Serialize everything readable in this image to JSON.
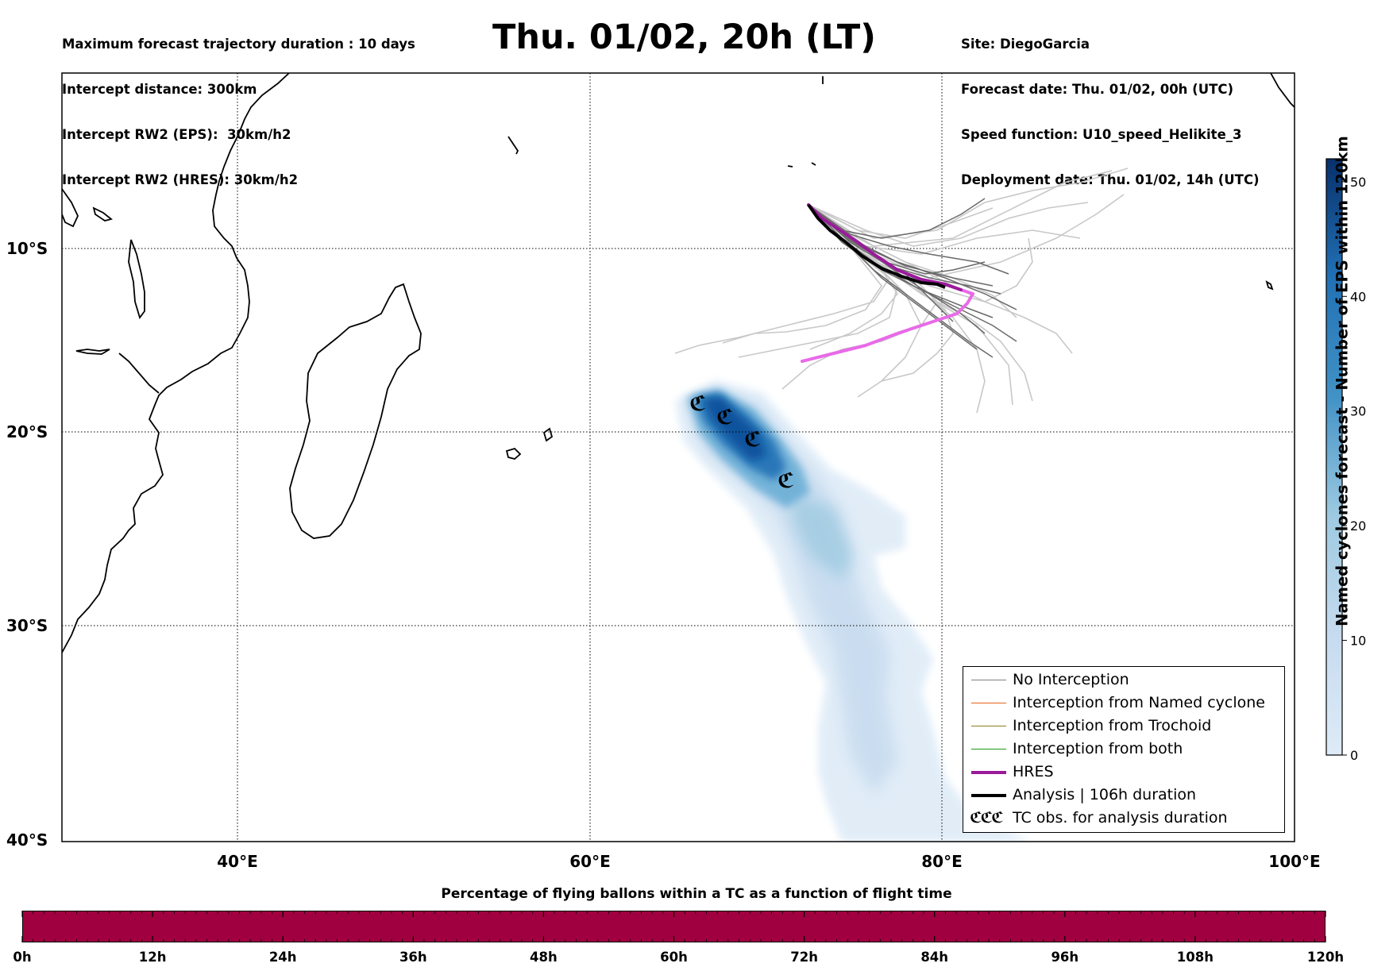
{
  "header_left": [
    "Maximum forecast trajectory duration : 10 days",
    "Intercept distance: 300km",
    "Intercept RW2 (EPS):  30km/h2",
    "Intercept RW2 (HRES): 30km/h2"
  ],
  "header_right": [
    "Site: DiegoGarcia",
    "Forecast date: Thu. 01/02, 00h (UTC)",
    "Speed function: U10_speed_Helikite_3",
    "Deployment date: Thu. 01/02, 14h (UTC)"
  ],
  "title": "Thu. 01/02, 20h (LT)",
  "map": {
    "lon_labels": [
      "40°E",
      "60°E",
      "80°E",
      "100°E"
    ],
    "lat_labels": [
      "10°S",
      "20°S",
      "30°S",
      "40°S"
    ],
    "extent": {
      "lon_min": 30,
      "lon_max": 100,
      "lat_min": -40,
      "lat_max": 0
    }
  },
  "legend": {
    "items": [
      {
        "label": "No Interception",
        "color": "#808080"
      },
      {
        "label": "Interception from Named cyclone",
        "color": "#e8641a"
      },
      {
        "label": "Interception from Trochoid",
        "color": "#8b7d1a"
      },
      {
        "label": "Interception from both",
        "color": "#1a9a1a"
      },
      {
        "label": "HRES",
        "color": "#9a1a9a"
      },
      {
        "label": "Analysis | 106h duration",
        "color": "#000000"
      },
      {
        "label": "TC obs. for analysis duration",
        "color": "#000000",
        "symbol": "ℭℭℭ"
      }
    ]
  },
  "colorbar": {
    "title": "Named cyclones forecast - Number of EPS within 120km",
    "ticks": [
      "0",
      "10",
      "20",
      "30",
      "40",
      "50"
    ],
    "range": [
      0,
      52
    ]
  },
  "bottom": {
    "title": "Percentage of flying ballons within a TC as a function of flight time",
    "bar_color": "#a0003f",
    "ticks": [
      "0h",
      "12h",
      "24h",
      "36h",
      "48h",
      "60h",
      "72h",
      "84h",
      "96h",
      "108h",
      "120h"
    ]
  },
  "colors": {
    "hres": "#9a1a9a",
    "hres_late": "#e86ae8",
    "eps_track": "#7a7a7a",
    "eps_track_light": "#c8c8c8",
    "density_dark": "#08306b",
    "density_light": "#deebf7"
  }
}
